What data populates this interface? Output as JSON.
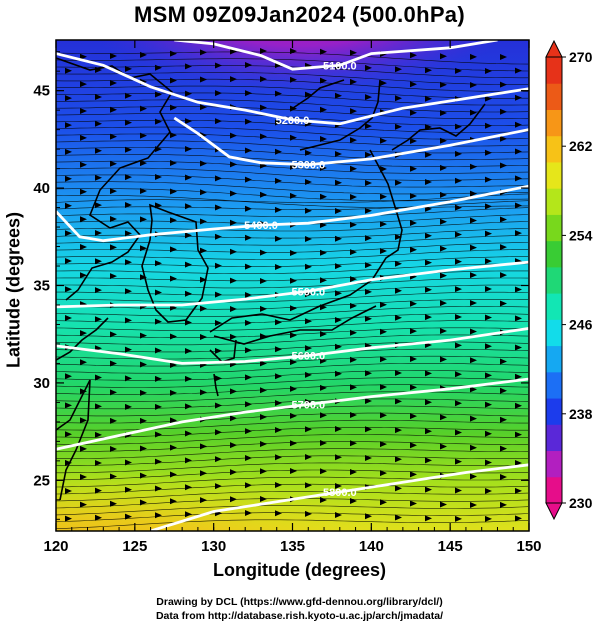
{
  "title": "MSM 09Z09Jan2024 (500.0hPa)",
  "xlabel": "Longitude (degrees)",
  "ylabel": "Latitude  (degrees)",
  "credits": [
    "Drawing by DCL (https://www.gfd-dennou.org/library/dcl/)",
    "Data from http://database.rish.kyoto-u.ac.jp/arch/jmadata/"
  ],
  "map": {
    "lon_range": [
      120,
      150
    ],
    "lat_range": [
      22.4,
      47.6
    ],
    "lon_ticks": [
      "120",
      "125",
      "130",
      "135",
      "140",
      "145",
      "150"
    ],
    "lat_ticks": [
      "25",
      "30",
      "35",
      "40",
      "45"
    ],
    "contours": [
      {
        "label": "5100.0",
        "lat_at_lon": [
          [
            127.5,
            47.6
          ],
          [
            130,
            47.4
          ],
          [
            133,
            46.8
          ],
          [
            135,
            46.1
          ],
          [
            138,
            46.3
          ],
          [
            140,
            46.9
          ],
          [
            145,
            47.2
          ],
          [
            148,
            47.6
          ]
        ]
      },
      {
        "label": "5200.0",
        "lat_at_lon": [
          [
            120,
            46.9
          ],
          [
            123,
            46.3
          ],
          [
            126,
            45.2
          ],
          [
            129,
            44.4
          ],
          [
            132,
            44.0
          ],
          [
            135,
            43.5
          ],
          [
            138,
            43.3
          ],
          [
            142,
            44.1
          ],
          [
            146,
            44.6
          ],
          [
            150,
            45.1
          ]
        ]
      },
      {
        "label": "5300.0",
        "lat_at_lon": [
          [
            127.5,
            43.6
          ],
          [
            129,
            42.8
          ],
          [
            131,
            41.6
          ],
          [
            133,
            41.3
          ],
          [
            136,
            41.2
          ],
          [
            140,
            41.5
          ],
          [
            145,
            42.2
          ],
          [
            150,
            43.0
          ]
        ]
      },
      {
        "label": "5400.0",
        "lat_at_lon": [
          [
            120,
            38.8
          ],
          [
            121.5,
            37.5
          ],
          [
            123,
            37.3
          ],
          [
            126,
            37.6
          ],
          [
            130,
            37.9
          ],
          [
            133,
            38.1
          ],
          [
            136,
            38.2
          ],
          [
            140,
            38.6
          ],
          [
            145,
            39.3
          ],
          [
            150,
            40.1
          ]
        ]
      },
      {
        "label": "5500.0",
        "lat_at_lon": [
          [
            120,
            33.9
          ],
          [
            124,
            34.0
          ],
          [
            128,
            34.0
          ],
          [
            132,
            34.3
          ],
          [
            136,
            34.7
          ],
          [
            140,
            35.3
          ],
          [
            145,
            35.8
          ],
          [
            150,
            36.2
          ]
        ]
      },
      {
        "label": "5600.0",
        "lat_at_lon": [
          [
            120,
            31.9
          ],
          [
            124,
            31.5
          ],
          [
            128,
            31.0
          ],
          [
            132,
            31.1
          ],
          [
            136,
            31.4
          ],
          [
            140,
            31.8
          ],
          [
            145,
            32.2
          ],
          [
            150,
            32.8
          ]
        ]
      },
      {
        "label": "5700.0",
        "lat_at_lon": [
          [
            120,
            26.6
          ],
          [
            124,
            27.3
          ],
          [
            128,
            28.0
          ],
          [
            132,
            28.5
          ],
          [
            136,
            28.9
          ],
          [
            140,
            29.3
          ],
          [
            145,
            29.7
          ],
          [
            150,
            30.2
          ]
        ]
      },
      {
        "label": "5800.0",
        "lat_at_lon": [
          [
            126,
            22.4
          ],
          [
            130,
            23.4
          ],
          [
            134,
            23.9
          ],
          [
            138,
            24.4
          ],
          [
            142,
            24.9
          ],
          [
            146,
            25.4
          ],
          [
            150,
            25.8
          ]
        ]
      }
    ]
  },
  "colorbar": {
    "min": 230,
    "max": 270,
    "tick_labels": [
      "270",
      "262",
      "254",
      "246",
      "238",
      "230"
    ],
    "colors": [
      "#e60d8a",
      "#b21fc0",
      "#5a28d8",
      "#1c3cec",
      "#1c6ff5",
      "#15a8f2",
      "#12dcea",
      "#12e6b4",
      "#1fd876",
      "#39cc34",
      "#78d81c",
      "#b4e61a",
      "#e6e61a",
      "#f7c217",
      "#f79617",
      "#ec5a17",
      "#e63219"
    ]
  }
}
